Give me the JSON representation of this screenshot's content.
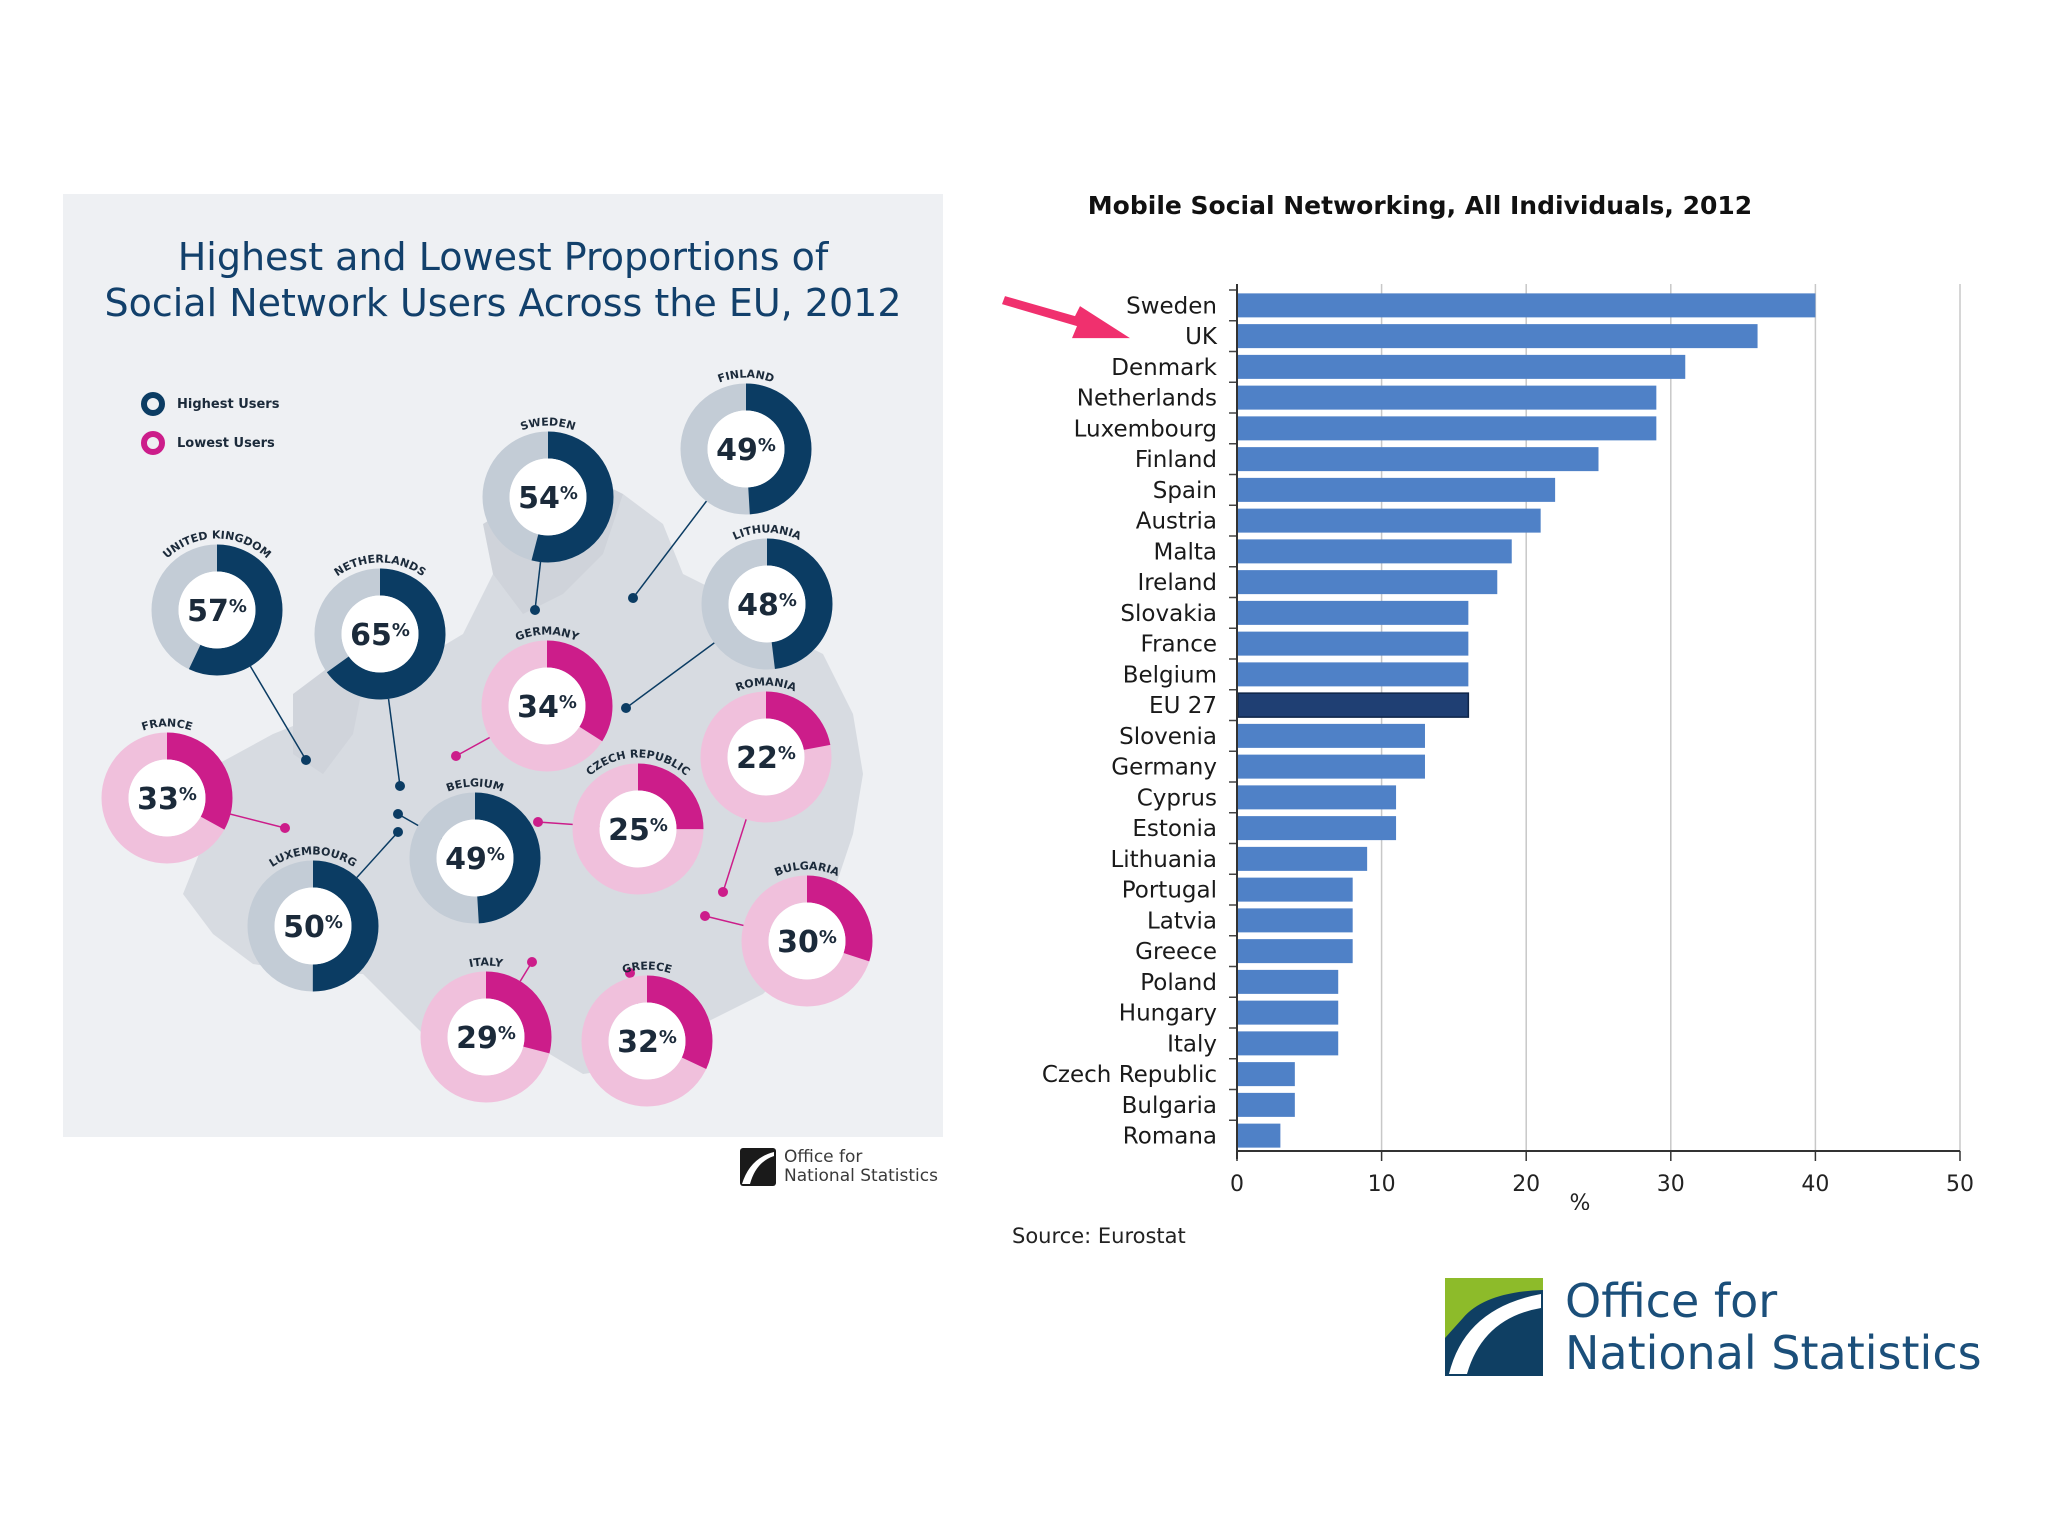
{
  "infographic": {
    "title_line1": "Highest and Lowest Proportions of",
    "title_line2": "Social Network Users Across the EU, 2012",
    "legend": {
      "highest": "Highest Users",
      "lowest": "Lowest Users"
    },
    "colors": {
      "highest": "#0b3c63",
      "highest_track": "#c3ccd6",
      "lowest": "#cc1d8a",
      "lowest_track": "#f0c0dc",
      "map": "#d4d8de",
      "background": "#eef0f3"
    },
    "countries": [
      {
        "name": "UNITED KINGDOM",
        "value": 57,
        "group": "highest"
      },
      {
        "name": "NETHERLANDS",
        "value": 65,
        "group": "highest"
      },
      {
        "name": "SWEDEN",
        "value": 54,
        "group": "highest"
      },
      {
        "name": "FINLAND",
        "value": 49,
        "group": "highest"
      },
      {
        "name": "LITHUANIA",
        "value": 48,
        "group": "highest"
      },
      {
        "name": "BELGIUM",
        "value": 49,
        "group": "highest"
      },
      {
        "name": "LUXEMBOURG",
        "value": 50,
        "group": "highest"
      },
      {
        "name": "GERMANY",
        "value": 34,
        "group": "lowest"
      },
      {
        "name": "FRANCE",
        "value": 33,
        "group": "lowest"
      },
      {
        "name": "ROMANIA",
        "value": 22,
        "group": "lowest"
      },
      {
        "name": "CZECH REPUBLIC",
        "value": 25,
        "group": "lowest"
      },
      {
        "name": "BULGARIA",
        "value": 30,
        "group": "lowest"
      },
      {
        "name": "ITALY",
        "value": 29,
        "group": "lowest"
      },
      {
        "name": "GREECE",
        "value": 32,
        "group": "lowest"
      }
    ],
    "footer_logo": {
      "line1": "Office for",
      "line2": "National Statistics"
    }
  },
  "chart_data": {
    "type": "bar",
    "orientation": "horizontal",
    "title": "Mobile Social Networking, All Individuals, 2012",
    "categories": [
      "Sweden",
      "UK",
      "Denmark",
      "Netherlands",
      "Luxembourg",
      "Finland",
      "Spain",
      "Austria",
      "Malta",
      "Ireland",
      "Slovakia",
      "France",
      "Belgium",
      "EU 27",
      "Slovenia",
      "Germany",
      "Cyprus",
      "Estonia",
      "Lithuania",
      "Portugal",
      "Latvia",
      "Greece",
      "Poland",
      "Hungary",
      "Italy",
      "Czech Republic",
      "Bulgaria",
      "Romana"
    ],
    "values": [
      40,
      36,
      31,
      29,
      29,
      25,
      22,
      21,
      19,
      18,
      16,
      16,
      16,
      16,
      13,
      13,
      11,
      11,
      9,
      8,
      8,
      8,
      7,
      7,
      7,
      4,
      4,
      3
    ],
    "highlight": "EU 27",
    "arrow_target": "UK",
    "xlabel": "%",
    "xlim": [
      0,
      50
    ],
    "xticks": [
      0,
      10,
      20,
      30,
      40,
      50
    ],
    "grid": true,
    "colors": {
      "bar": "#4f81c7",
      "highlight": "#1f3f73",
      "arrow": "#f0306e"
    }
  },
  "source": "Source: Eurostat",
  "ons_logo": {
    "line1": "Office for",
    "line2": "National Statistics"
  }
}
